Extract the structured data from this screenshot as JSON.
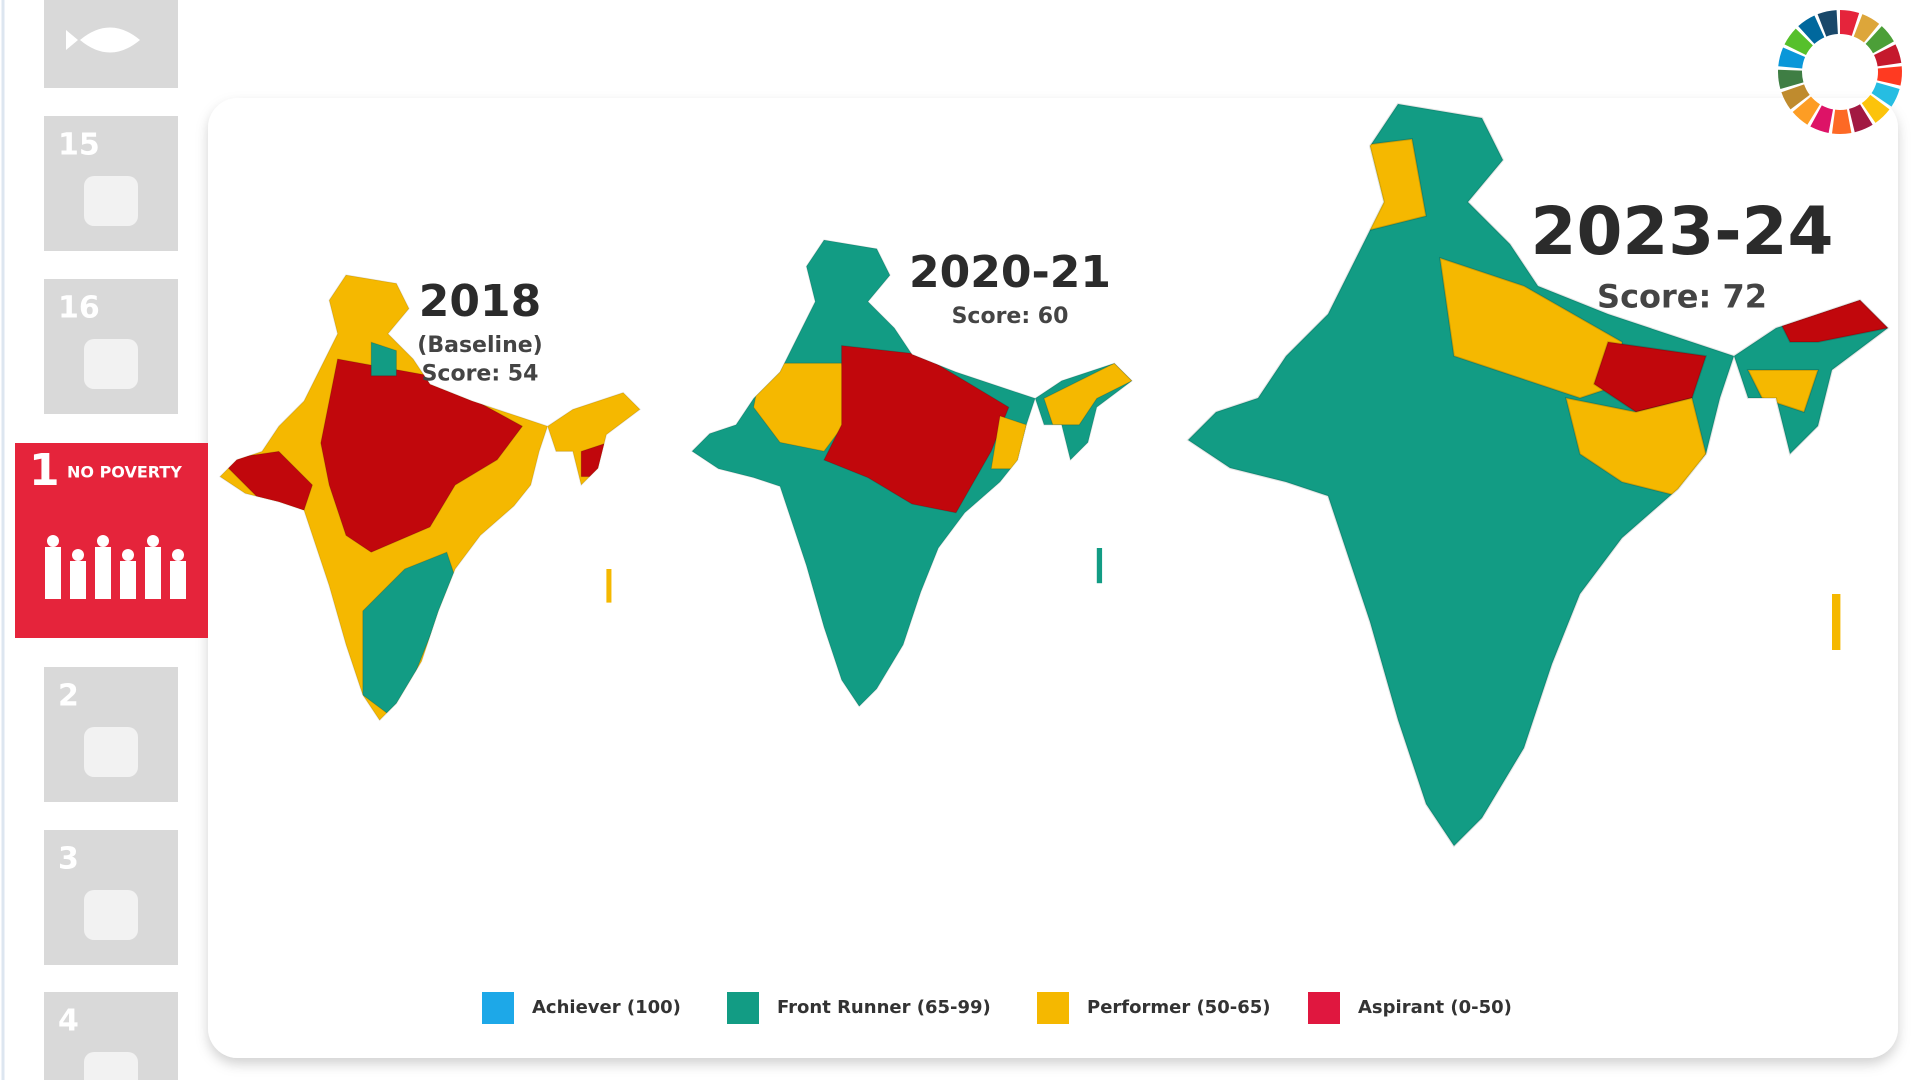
{
  "sidebar": {
    "tiles": [
      {
        "number": "15"
      },
      {
        "number": "16"
      },
      {
        "number": "1",
        "label": "NO POVERTY"
      },
      {
        "number": "2"
      },
      {
        "number": "3"
      },
      {
        "number": "4"
      }
    ]
  },
  "maps": [
    {
      "year": "2018",
      "subtitle": "(Baseline)",
      "score": "Score: 54"
    },
    {
      "year": "2020-21",
      "score": "Score: 60"
    },
    {
      "year": "2023-24",
      "score": "Score: 72"
    }
  ],
  "legend": [
    {
      "label": "Achiever (100)",
      "color": "#1da8e8"
    },
    {
      "label": "Front Runner (65-99)",
      "color": "#129c84"
    },
    {
      "label": "Performer (50-65)",
      "color": "#f5b800"
    },
    {
      "label": "Aspirant (0-50)",
      "color": "#e0173f"
    }
  ]
}
